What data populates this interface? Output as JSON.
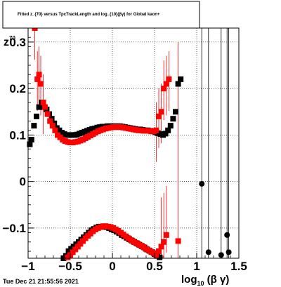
{
  "title": "Fitted z_{70} versus TpcTrackLength and log_{10}(βγ) for Global kaon+",
  "timestamp": "Tue Dec 21 21:55:56 2021",
  "chart_data": {
    "type": "scatter",
    "title": "Fitted z_{70} versus TpcTrackLength and log_{10}(βγ) for Global kaon+",
    "xlabel": "log_{10} (β γ)",
    "ylabel": "z_{70}",
    "xlim": [
      -1,
      1.5
    ],
    "ylim": [
      -0.165,
      0.33
    ],
    "grid": true,
    "xticks": [
      "−1",
      "−0.5",
      "0",
      "0.5",
      "1",
      "1.5"
    ],
    "yticks": [
      "−0.1",
      "0",
      "0.1",
      "0.2",
      "0.3"
    ],
    "xtick_values": [
      -1,
      -0.5,
      0,
      0.5,
      1,
      1.5
    ],
    "ytick_values": [
      -0.1,
      0,
      0.1,
      0.2,
      0.3
    ],
    "colors": {
      "black": "#000000",
      "red": "#ff0000"
    },
    "series": [
      {
        "color": "#000000",
        "marker": "square",
        "x": [
          -0.98,
          -0.96,
          -0.93,
          -0.9,
          -0.87,
          -0.84,
          -0.81,
          -0.78,
          -0.75,
          -0.72,
          -0.69,
          -0.66,
          -0.63,
          -0.6,
          -0.57,
          -0.54,
          -0.51,
          -0.48,
          -0.45,
          -0.42,
          -0.39,
          -0.36,
          -0.33,
          -0.3,
          -0.27,
          -0.24,
          -0.21,
          -0.18,
          -0.15,
          -0.12,
          -0.09,
          -0.06,
          -0.03,
          0.0,
          0.03,
          0.06,
          0.09,
          0.12,
          0.15,
          0.18,
          0.21,
          0.24,
          0.27,
          0.3,
          0.33,
          0.36,
          0.39,
          0.42,
          0.45,
          0.48,
          0.51,
          0.54,
          0.57,
          0.6,
          0.63,
          0.66,
          0.69,
          0.72,
          0.75,
          0.78,
          0.81
        ],
        "y": [
          0.08,
          0.09,
          0.12,
          0.14,
          0.16,
          0.17,
          0.16,
          0.155,
          0.145,
          0.135,
          0.125,
          0.115,
          0.11,
          0.105,
          0.102,
          0.1,
          0.1,
          0.1,
          0.1,
          0.101,
          0.103,
          0.105,
          0.107,
          0.109,
          0.111,
          0.113,
          0.114,
          0.116,
          0.117,
          0.118,
          0.118,
          0.119,
          0.119,
          0.119,
          0.119,
          0.119,
          0.119,
          0.118,
          0.117,
          0.116,
          0.115,
          0.114,
          0.113,
          0.112,
          0.112,
          0.111,
          0.11,
          0.11,
          0.109,
          0.108,
          0.106,
          0.104,
          0.102,
          0.1,
          0.103,
          0.11,
          0.12,
          0.135,
          0.15,
          0.21,
          0.22
        ]
      },
      {
        "color": "#000000",
        "marker": "square",
        "x": [
          -0.58,
          -0.55,
          -0.52,
          -0.49,
          -0.46,
          -0.43,
          -0.4,
          -0.37,
          -0.34,
          -0.31,
          -0.28,
          -0.25,
          -0.22,
          -0.19,
          -0.16,
          -0.13,
          -0.1,
          -0.07,
          -0.04,
          -0.01,
          0.02,
          0.05,
          0.08,
          0.11,
          0.14,
          0.17,
          0.2,
          0.23,
          0.26,
          0.29,
          0.32,
          0.35,
          0.38,
          0.41,
          0.44,
          0.47,
          0.5,
          0.53,
          0.56
        ],
        "y": [
          -0.165,
          -0.16,
          -0.15,
          -0.145,
          -0.14,
          -0.135,
          -0.13,
          -0.125,
          -0.12,
          -0.115,
          -0.11,
          -0.105,
          -0.102,
          -0.099,
          -0.097,
          -0.097,
          -0.097,
          -0.098,
          -0.1,
          -0.103,
          -0.105,
          -0.108,
          -0.111,
          -0.115,
          -0.118,
          -0.121,
          -0.124,
          -0.127,
          -0.13,
          -0.133,
          -0.136,
          -0.139,
          -0.142,
          -0.146,
          -0.149,
          -0.152,
          -0.156,
          -0.16,
          -0.163
        ]
      },
      {
        "color": "#000000",
        "marker": "circle",
        "x": [
          1.06,
          1.14,
          1.29,
          1.36,
          1.38
        ],
        "y": [
          -0.005,
          -0.152,
          -0.158,
          -0.115,
          -0.152
        ]
      },
      {
        "color": "#ff0000",
        "marker": "square",
        "x": [
          -0.92,
          -0.89,
          -0.87,
          -0.85,
          -0.82,
          -0.8,
          -0.77,
          -0.74,
          -0.71,
          -0.68,
          -0.65,
          -0.62,
          -0.59,
          -0.56,
          -0.53,
          -0.5,
          -0.47,
          -0.44,
          -0.41,
          -0.38,
          -0.35,
          -0.32,
          -0.29,
          -0.26,
          -0.23,
          -0.2,
          -0.17,
          -0.14,
          -0.11,
          -0.08,
          -0.05,
          -0.02,
          0.01,
          0.04,
          0.07,
          0.1,
          0.13,
          0.16,
          0.19,
          0.22,
          0.25,
          0.28,
          0.31,
          0.34,
          0.37,
          0.4,
          0.43,
          0.46,
          0.49,
          0.52,
          0.55,
          0.58,
          0.61,
          0.64,
          0.67
        ],
        "y": [
          0.33,
          0.22,
          0.23,
          0.21,
          0.17,
          0.16,
          0.145,
          0.13,
          0.12,
          0.11,
          0.1,
          0.095,
          0.09,
          0.087,
          0.085,
          0.084,
          0.084,
          0.085,
          0.086,
          0.088,
          0.09,
          0.093,
          0.096,
          0.099,
          0.102,
          0.105,
          0.108,
          0.11,
          0.112,
          0.114,
          0.115,
          0.116,
          0.117,
          0.117,
          0.117,
          0.117,
          0.116,
          0.115,
          0.114,
          0.113,
          0.112,
          0.111,
          0.11,
          0.11,
          0.109,
          0.109,
          0.109,
          0.108,
          0.108,
          0.11,
          0.14,
          0.15,
          0.2,
          0.21,
          0.22
        ]
      },
      {
        "color": "#ff0000",
        "marker": "square",
        "x": [
          -0.53,
          -0.5,
          -0.47,
          -0.44,
          -0.41,
          -0.38,
          -0.35,
          -0.32,
          -0.29,
          -0.26,
          -0.23,
          -0.2,
          -0.17,
          -0.14,
          -0.11,
          -0.08,
          -0.05,
          -0.02,
          0.01,
          0.04,
          0.07,
          0.1,
          0.13,
          0.16,
          0.19,
          0.22,
          0.25,
          0.28,
          0.31,
          0.34,
          0.37,
          0.4,
          0.43,
          0.46,
          0.49,
          0.52,
          0.55,
          0.58,
          0.61,
          0.64
        ],
        "y": [
          -0.163,
          -0.158,
          -0.152,
          -0.146,
          -0.14,
          -0.134,
          -0.128,
          -0.122,
          -0.117,
          -0.112,
          -0.107,
          -0.103,
          -0.1,
          -0.098,
          -0.096,
          -0.096,
          -0.097,
          -0.098,
          -0.1,
          -0.103,
          -0.106,
          -0.11,
          -0.114,
          -0.118,
          -0.122,
          -0.126,
          -0.129,
          -0.132,
          -0.135,
          -0.138,
          -0.141,
          -0.145,
          -0.148,
          -0.151,
          -0.154,
          -0.158,
          -0.15,
          -0.14,
          -0.13,
          -0.115
        ]
      },
      {
        "color": "#ff0000",
        "marker": "square",
        "x": [
          0.78
        ],
        "y": [
          -0.128
        ]
      }
    ]
  }
}
